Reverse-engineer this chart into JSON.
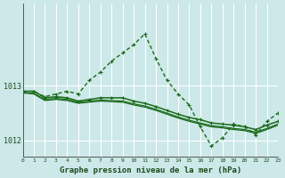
{
  "title": "Graphe pression niveau de la mer (hPa)",
  "bg_color": "#cce8e8",
  "grid_color": "#ffffff",
  "line_color": "#1a6b1a",
  "xlim": [
    0,
    23
  ],
  "ylim": [
    1011.7,
    1014.5
  ],
  "yticks": [
    1012,
    1013
  ],
  "xticks": [
    0,
    1,
    2,
    3,
    4,
    5,
    6,
    7,
    8,
    9,
    10,
    11,
    12,
    13,
    14,
    15,
    16,
    17,
    18,
    19,
    20,
    21,
    22,
    23
  ],
  "hours": [
    0,
    1,
    2,
    3,
    4,
    5,
    6,
    7,
    8,
    9,
    10,
    11,
    12,
    13,
    14,
    15,
    16,
    17,
    18,
    19,
    20,
    21,
    22,
    23
  ],
  "peak_line": [
    1012.9,
    1012.9,
    1012.8,
    1012.85,
    1012.9,
    1012.85,
    1013.1,
    1013.25,
    1013.45,
    1013.6,
    1013.75,
    1013.95,
    1013.5,
    1013.1,
    1012.85,
    1012.65,
    1012.25,
    1011.9,
    1012.05,
    1012.3,
    1012.25,
    1012.1,
    1012.35,
    1012.5
  ],
  "flat_line": [
    1012.9,
    1012.9,
    1012.78,
    1012.8,
    1012.78,
    1012.72,
    1012.75,
    1012.78,
    1012.78,
    1012.78,
    1012.72,
    1012.68,
    1012.62,
    1012.55,
    1012.48,
    1012.42,
    1012.38,
    1012.32,
    1012.3,
    1012.28,
    1012.25,
    1012.2,
    1012.28,
    1012.35
  ],
  "env_top": [
    1012.88,
    1012.86,
    1012.75,
    1012.77,
    1012.75,
    1012.7,
    1012.72,
    1012.74,
    1012.73,
    1012.72,
    1012.67,
    1012.63,
    1012.57,
    1012.5,
    1012.43,
    1012.37,
    1012.32,
    1012.27,
    1012.25,
    1012.22,
    1012.2,
    1012.15,
    1012.22,
    1012.3
  ],
  "env_bot": [
    1012.87,
    1012.85,
    1012.73,
    1012.75,
    1012.73,
    1012.68,
    1012.7,
    1012.72,
    1012.71,
    1012.7,
    1012.65,
    1012.61,
    1012.55,
    1012.48,
    1012.41,
    1012.35,
    1012.3,
    1012.25,
    1012.23,
    1012.2,
    1012.18,
    1012.13,
    1012.2,
    1012.28
  ]
}
